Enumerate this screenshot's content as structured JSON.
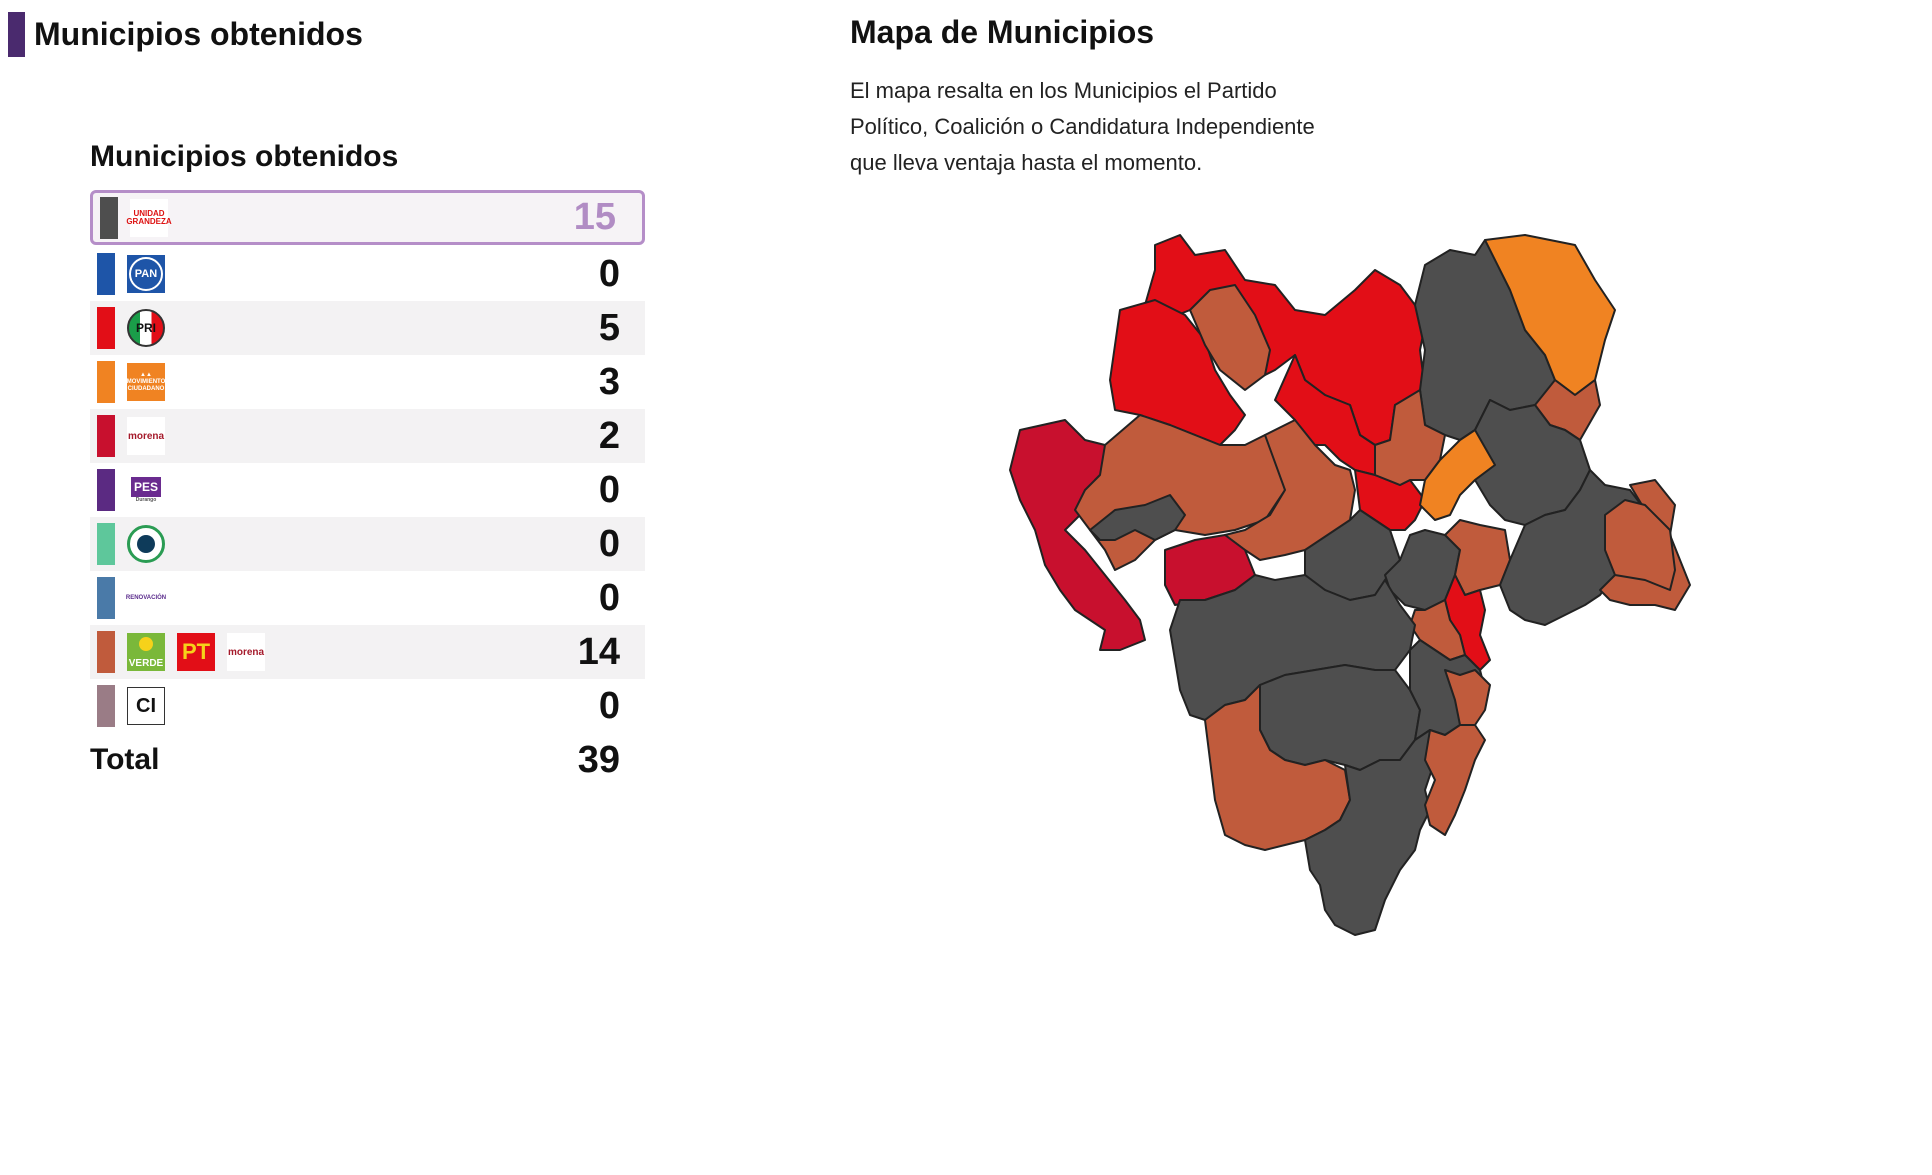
{
  "header": {
    "title": "Municipios obtenidos"
  },
  "panel": {
    "title": "Municipios obtenidos",
    "rows": [
      {
        "swatch": "#4e4e4e",
        "logos": [
          "UNIDAD GRANDEZA"
        ],
        "value": "15",
        "selected": true
      },
      {
        "swatch": "#1e55a8",
        "logos": [
          "PAN"
        ],
        "value": "0"
      },
      {
        "swatch": "#e20e17",
        "logos": [
          "PRI"
        ],
        "value": "5"
      },
      {
        "swatch": "#f08322",
        "logos": [
          "MOVIMIENTO CIUDADANO"
        ],
        "value": "3"
      },
      {
        "swatch": "#c8102e",
        "logos": [
          "morena"
        ],
        "value": "2"
      },
      {
        "swatch": "#5b2a82",
        "logos": [
          "PES Durango"
        ],
        "value": "0"
      },
      {
        "swatch": "#5ec79b",
        "logos": [
          "Redes Sociales Progresistas"
        ],
        "value": "0"
      },
      {
        "swatch": "#4a7aa8",
        "logos": [
          "RENOVACIÓN"
        ],
        "value": "0"
      },
      {
        "swatch": "#c05b3c",
        "logos": [
          "VERDE",
          "PT",
          "morena"
        ],
        "value": "14"
      },
      {
        "swatch": "#9a7c86",
        "logos": [
          "CI"
        ],
        "value": "0"
      }
    ],
    "total_label": "Total",
    "total_value": "39"
  },
  "map": {
    "title": "Mapa de Municipios",
    "description": "El mapa resalta en los Municipios el Partido Político, Coalición o Candidatura Independiente que lleva ventaja hasta el momento.",
    "colors": {
      "unidad": "#4e4e4e",
      "pri": "#e20e17",
      "mc": "#f08322",
      "morena": "#c8102e",
      "coalicion": "#c05b3c"
    }
  }
}
